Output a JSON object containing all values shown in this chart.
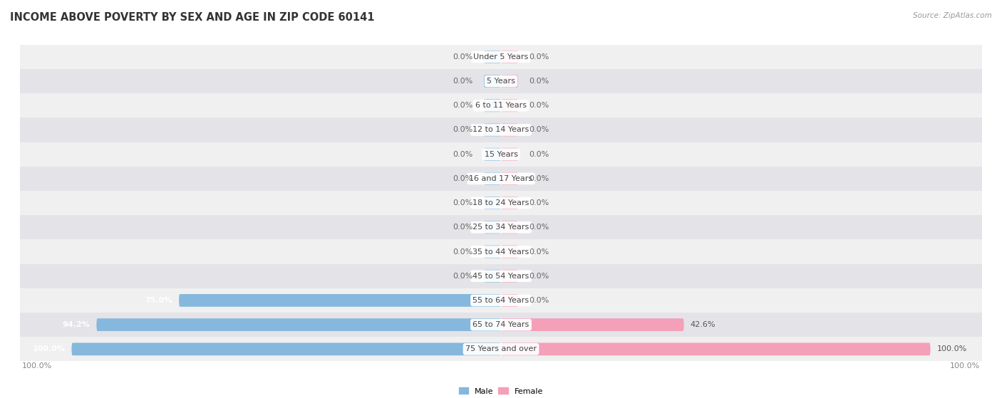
{
  "title": "INCOME ABOVE POVERTY BY SEX AND AGE IN ZIP CODE 60141",
  "source": "Source: ZipAtlas.com",
  "categories": [
    "Under 5 Years",
    "5 Years",
    "6 to 11 Years",
    "12 to 14 Years",
    "15 Years",
    "16 and 17 Years",
    "18 to 24 Years",
    "25 to 34 Years",
    "35 to 44 Years",
    "45 to 54 Years",
    "55 to 64 Years",
    "65 to 74 Years",
    "75 Years and over"
  ],
  "male_values": [
    0.0,
    0.0,
    0.0,
    0.0,
    0.0,
    0.0,
    0.0,
    0.0,
    0.0,
    0.0,
    75.0,
    94.2,
    100.0
  ],
  "female_values": [
    0.0,
    0.0,
    0.0,
    0.0,
    0.0,
    0.0,
    0.0,
    0.0,
    0.0,
    0.0,
    0.0,
    42.6,
    100.0
  ],
  "male_color": "#85b8dc",
  "female_color": "#f4a0b8",
  "row_bg_color_light": "#f0f0f0",
  "row_bg_color_dark": "#e4e4e8",
  "title_fontsize": 10.5,
  "label_fontsize": 8.0,
  "value_fontsize": 8.0,
  "source_fontsize": 7.5,
  "xlim": 100,
  "legend_male": "Male",
  "legend_female": "Female",
  "bottom_labels": [
    "100.0%",
    "100.0%"
  ]
}
